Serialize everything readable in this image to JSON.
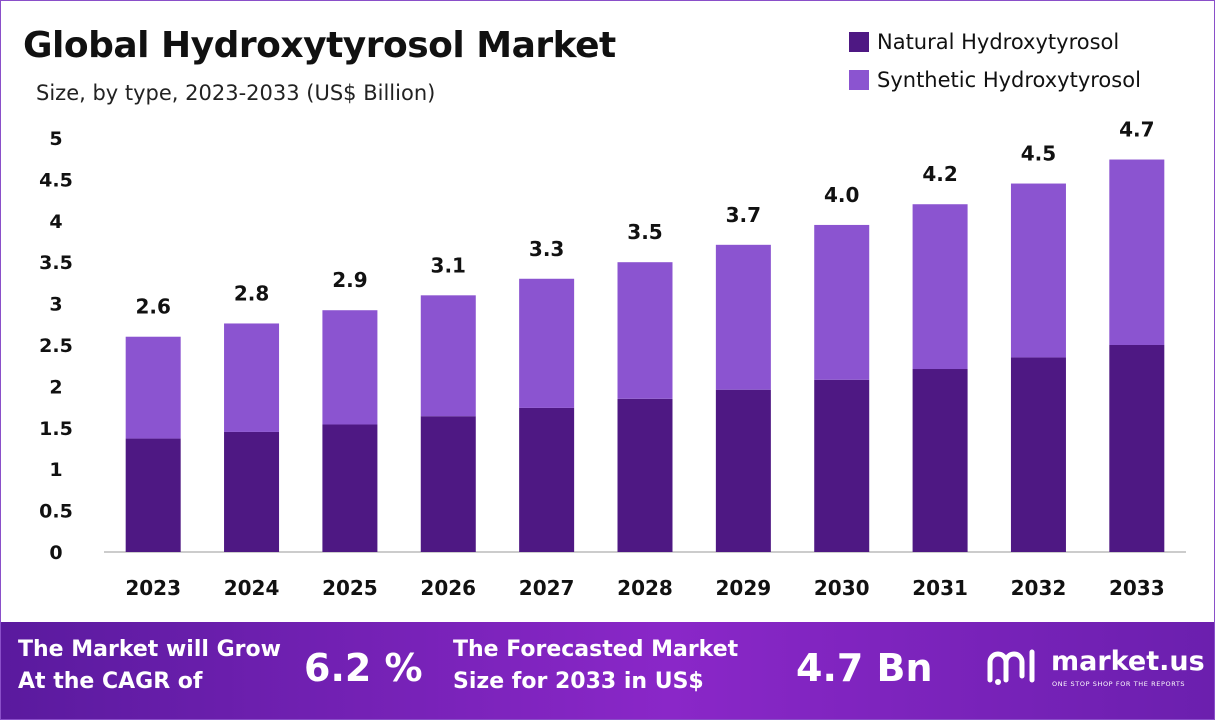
{
  "colors": {
    "natural": "#4e1883",
    "synthetic": "#8b54d0",
    "axis": "#bbbbbb"
  },
  "chart_data": {
    "type": "bar",
    "stacked": true,
    "title": "Global Hydroxytyrosol Market",
    "subtitle": "Size, by type, 2023-2033 (US$ Billion)",
    "categories": [
      "2023",
      "2024",
      "2025",
      "2026",
      "2027",
      "2028",
      "2029",
      "2030",
      "2031",
      "2032",
      "2033"
    ],
    "series": [
      {
        "name": "Natural Hydroxytyrosol",
        "color_key": "natural",
        "values": [
          1.37,
          1.45,
          1.54,
          1.64,
          1.74,
          1.85,
          1.96,
          2.08,
          2.21,
          2.35,
          2.5
        ]
      },
      {
        "name": "Synthetic Hydroxytyrosol",
        "color_key": "synthetic",
        "values": [
          1.23,
          1.31,
          1.38,
          1.46,
          1.56,
          1.65,
          1.75,
          1.87,
          1.99,
          2.1,
          2.24
        ]
      }
    ],
    "totals": [
      "2.6",
      "2.8",
      "2.9",
      "3.1",
      "3.3",
      "3.5",
      "3.7",
      "4.0",
      "4.2",
      "4.5",
      "4.7"
    ],
    "total_values": [
      2.6,
      2.76,
      2.92,
      3.1,
      3.3,
      3.5,
      3.71,
      3.95,
      4.2,
      4.45,
      4.74
    ],
    "ylim": [
      0,
      5
    ],
    "yticks": [
      "0",
      "0.5",
      "1",
      "1.5",
      "2",
      "2.5",
      "3",
      "3.5",
      "4",
      "4.5",
      "5"
    ],
    "ytick_values": [
      0,
      0.5,
      1,
      1.5,
      2,
      2.5,
      3,
      3.5,
      4,
      4.5,
      5
    ],
    "grid": false,
    "legend": "top-right"
  },
  "footer": {
    "cagr_label_line1": "The Market will Grow",
    "cagr_label_line2": "At the CAGR of",
    "cagr_value": "6.2 %",
    "forecast_label_line1": "The Forecasted Market",
    "forecast_label_line2": "Size for 2033 in US$",
    "forecast_value": "4.7 Bn",
    "brand_name": "market.us",
    "brand_tagline": "ONE STOP SHOP FOR THE REPORTS",
    "brand_icon": "market-us-logo-icon"
  }
}
